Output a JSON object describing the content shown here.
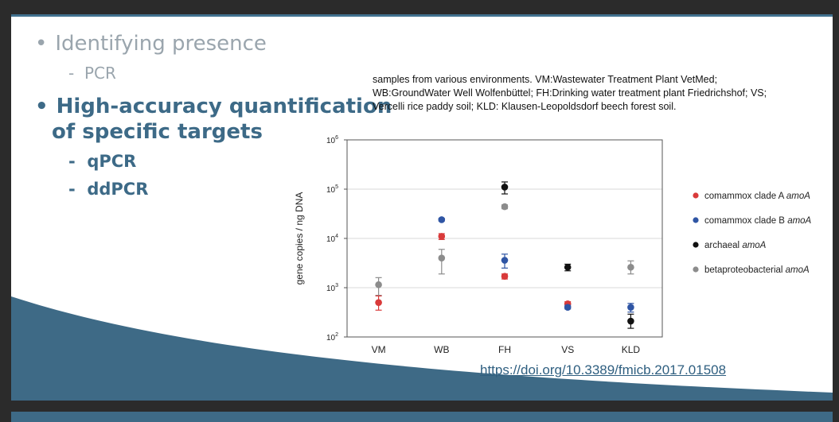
{
  "slide": {
    "bullets": [
      {
        "label": "Identifying presence",
        "subs": [
          "PCR"
        ]
      },
      {
        "label_line1": "High-accuracy quantification",
        "label_line2": "of specific targets",
        "subs": [
          "qPCR",
          "ddPCR"
        ]
      }
    ],
    "bullet_char": "•",
    "dash_char": "-",
    "caption_lines": [
      "samples from various environments. VM:Wastewater Treatment Plant VetMed;",
      "WB:GroundWater Well Wolfenbüttel; FH:Drinking water treatment plant Friedrichshof; VS;",
      "Vercelli rice paddy soil; KLD: Klausen-Leopoldsdorf beech forest soil."
    ],
    "doi_link": "https://doi.org/10.3389/fmicb.2017.01508",
    "colors": {
      "accent": "#3d6a87",
      "muted": "#9aa5ad"
    }
  },
  "chart_data": {
    "type": "scatter",
    "categories": [
      "VM",
      "WB",
      "FH",
      "VS",
      "KLD"
    ],
    "ylabel": "gene copies / ng DNA",
    "yscale": "log",
    "ylim": [
      100,
      1000000
    ],
    "yticks": [
      {
        "value": 100,
        "base": "10",
        "exp": "2"
      },
      {
        "value": 1000,
        "base": "10",
        "exp": "3"
      },
      {
        "value": 10000,
        "base": "10",
        "exp": "4"
      },
      {
        "value": 100000,
        "base": "10",
        "exp": "5"
      },
      {
        "value": 1000000,
        "base": "10",
        "exp": "6"
      }
    ],
    "grid": true,
    "legend_position": "right",
    "series": [
      {
        "name_prefix": "comammox clade A ",
        "name_italic": "amoA",
        "color": "#d93a3a",
        "values": [
          500,
          11000,
          1700,
          470,
          null
        ],
        "err_low": [
          350,
          9500,
          1500,
          420,
          null
        ],
        "err_high": [
          680,
          12500,
          1900,
          520,
          null
        ]
      },
      {
        "name_prefix": "comammox clade B ",
        "name_italic": "amoA",
        "color": "#2f55a4",
        "values": [
          null,
          24000,
          3600,
          400,
          400
        ],
        "err_low": [
          null,
          22500,
          2500,
          370,
          320
        ],
        "err_high": [
          null,
          25500,
          4800,
          440,
          480
        ]
      },
      {
        "name_prefix": "archaeal ",
        "name_italic": "amoA",
        "color": "#111111",
        "values": [
          null,
          null,
          110000,
          2600,
          210
        ],
        "err_low": [
          null,
          null,
          80000,
          2200,
          150
        ],
        "err_high": [
          null,
          null,
          140000,
          3000,
          290
        ]
      },
      {
        "name_prefix": "betaproteobacterial ",
        "name_italic": "amoA",
        "color": "#8c8c8c",
        "values": [
          1150,
          4000,
          44000,
          null,
          2600
        ],
        "err_low": [
          700,
          1900,
          40000,
          null,
          1900
        ],
        "err_high": [
          1600,
          6000,
          48000,
          null,
          3500
        ]
      }
    ]
  }
}
